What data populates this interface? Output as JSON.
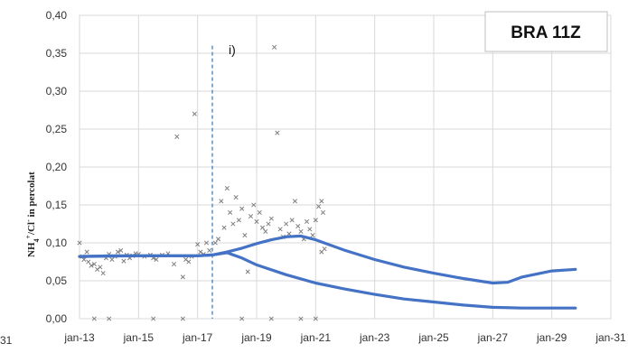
{
  "chart_data": {
    "type": "line",
    "title": "BRA 11Z",
    "ylabel_parts": {
      "pre": "NH",
      "sub1": "4",
      "sup1": "+",
      "mid": "/Cl",
      "sup2": "-",
      "post": " in percolat"
    },
    "xlabel": "",
    "edge_label": "31",
    "x_ticks": [
      "jan-13",
      "jan-15",
      "jan-17",
      "jan-19",
      "jan-21",
      "jan-23",
      "jan-25",
      "jan-27",
      "jan-29",
      "jan-31"
    ],
    "y_ticks": [
      "0,00",
      "0,05",
      "0,10",
      "0,15",
      "0,20",
      "0,25",
      "0,30",
      "0,35",
      "0,40"
    ],
    "ylim": [
      0,
      0.4
    ],
    "xlim": [
      2013.0,
      2031.0
    ],
    "grid": true,
    "marker_line": {
      "x": 2017.5,
      "label": "i)"
    },
    "series": [
      {
        "style": "line",
        "color": "#4472C4",
        "x": [
          2013.0,
          2014.0,
          2015.0,
          2016.0,
          2017.0,
          2017.5,
          2018.0,
          2018.5,
          2019.0,
          2019.5,
          2020.0,
          2020.5,
          2021.0,
          2022.0,
          2023.0,
          2024.0,
          2025.0,
          2026.0,
          2027.0,
          2027.5,
          2028.0,
          2029.0,
          2029.8
        ],
        "values": [
          0.082,
          0.083,
          0.083,
          0.083,
          0.083,
          0.084,
          0.088,
          0.093,
          0.099,
          0.104,
          0.108,
          0.109,
          0.104,
          0.09,
          0.078,
          0.068,
          0.06,
          0.053,
          0.047,
          0.048,
          0.055,
          0.063,
          0.065
        ]
      },
      {
        "style": "line",
        "color": "#4472C4",
        "x": [
          2013.0,
          2015.0,
          2017.0,
          2017.5,
          2018.0,
          2018.5,
          2019.0,
          2020.0,
          2021.0,
          2022.0,
          2023.0,
          2024.0,
          2025.0,
          2026.0,
          2027.0,
          2028.0,
          2029.0,
          2029.8
        ],
        "values": [
          0.082,
          0.083,
          0.083,
          0.084,
          0.087,
          0.08,
          0.071,
          0.058,
          0.047,
          0.039,
          0.032,
          0.026,
          0.022,
          0.018,
          0.015,
          0.014,
          0.014,
          0.014
        ]
      },
      {
        "style": "scatter",
        "color": "#7f7f7f",
        "points": [
          [
            2013.0,
            0.1
          ],
          [
            2013.1,
            0.082
          ],
          [
            2013.15,
            0.078
          ],
          [
            2013.25,
            0.088
          ],
          [
            2013.3,
            0.075
          ],
          [
            2013.4,
            0.07
          ],
          [
            2013.5,
            0.072
          ],
          [
            2013.6,
            0.065
          ],
          [
            2013.7,
            0.068
          ],
          [
            2013.8,
            0.06
          ],
          [
            2013.9,
            0.08
          ],
          [
            2014.0,
            0.085
          ],
          [
            2014.1,
            0.078
          ],
          [
            2014.2,
            0.082
          ],
          [
            2014.3,
            0.088
          ],
          [
            2014.4,
            0.09
          ],
          [
            2014.5,
            0.076
          ],
          [
            2014.6,
            0.084
          ],
          [
            2014.7,
            0.08
          ],
          [
            2014.8,
            0.083
          ],
          [
            2014.9,
            0.086
          ],
          [
            2015.0,
            0.085
          ],
          [
            2015.2,
            0.082
          ],
          [
            2015.4,
            0.084
          ],
          [
            2015.5,
            0.08
          ],
          [
            2015.6,
            0.078
          ],
          [
            2015.8,
            0.084
          ],
          [
            2016.0,
            0.086
          ],
          [
            2016.2,
            0.072
          ],
          [
            2016.3,
            0.24
          ],
          [
            2016.5,
            0.055
          ],
          [
            2016.6,
            0.078
          ],
          [
            2016.7,
            0.075
          ],
          [
            2016.8,
            0.082
          ],
          [
            2016.9,
            0.27
          ],
          [
            2017.0,
            0.098
          ],
          [
            2017.1,
            0.088
          ],
          [
            2017.2,
            0.085
          ],
          [
            2017.3,
            0.1
          ],
          [
            2017.4,
            0.09
          ],
          [
            2017.6,
            0.1
          ],
          [
            2017.7,
            0.105
          ],
          [
            2017.8,
            0.155
          ],
          [
            2017.9,
            0.12
          ],
          [
            2018.0,
            0.172
          ],
          [
            2018.1,
            0.14
          ],
          [
            2018.2,
            0.125
          ],
          [
            2018.3,
            0.16
          ],
          [
            2018.4,
            0.13
          ],
          [
            2018.5,
            0.145
          ],
          [
            2018.6,
            0.11
          ],
          [
            2018.7,
            0.062
          ],
          [
            2018.8,
            0.135
          ],
          [
            2018.9,
            0.15
          ],
          [
            2019.0,
            0.128
          ],
          [
            2019.1,
            0.14
          ],
          [
            2019.2,
            0.12
          ],
          [
            2019.3,
            0.115
          ],
          [
            2019.4,
            0.125
          ],
          [
            2019.5,
            0.132
          ],
          [
            2019.6,
            0.358
          ],
          [
            2019.7,
            0.245
          ],
          [
            2019.8,
            0.118
          ],
          [
            2019.9,
            0.108
          ],
          [
            2020.0,
            0.125
          ],
          [
            2020.1,
            0.112
          ],
          [
            2020.2,
            0.13
          ],
          [
            2020.3,
            0.155
          ],
          [
            2020.4,
            0.122
          ],
          [
            2020.5,
            0.115
          ],
          [
            2020.6,
            0.105
          ],
          [
            2020.7,
            0.128
          ],
          [
            2020.8,
            0.118
          ],
          [
            2020.9,
            0.11
          ],
          [
            2021.0,
            0.13
          ],
          [
            2021.1,
            0.148
          ],
          [
            2021.2,
            0.155
          ],
          [
            2021.25,
            0.14
          ],
          [
            2021.3,
            0.092
          ],
          [
            2021.2,
            0.088
          ],
          [
            2013.5,
            0.0
          ],
          [
            2014.0,
            0.0
          ],
          [
            2015.5,
            0.0
          ],
          [
            2016.5,
            0.0
          ],
          [
            2018.5,
            0.0
          ],
          [
            2019.5,
            0.0
          ],
          [
            2020.5,
            0.0
          ],
          [
            2021.0,
            0.0
          ]
        ]
      }
    ]
  }
}
